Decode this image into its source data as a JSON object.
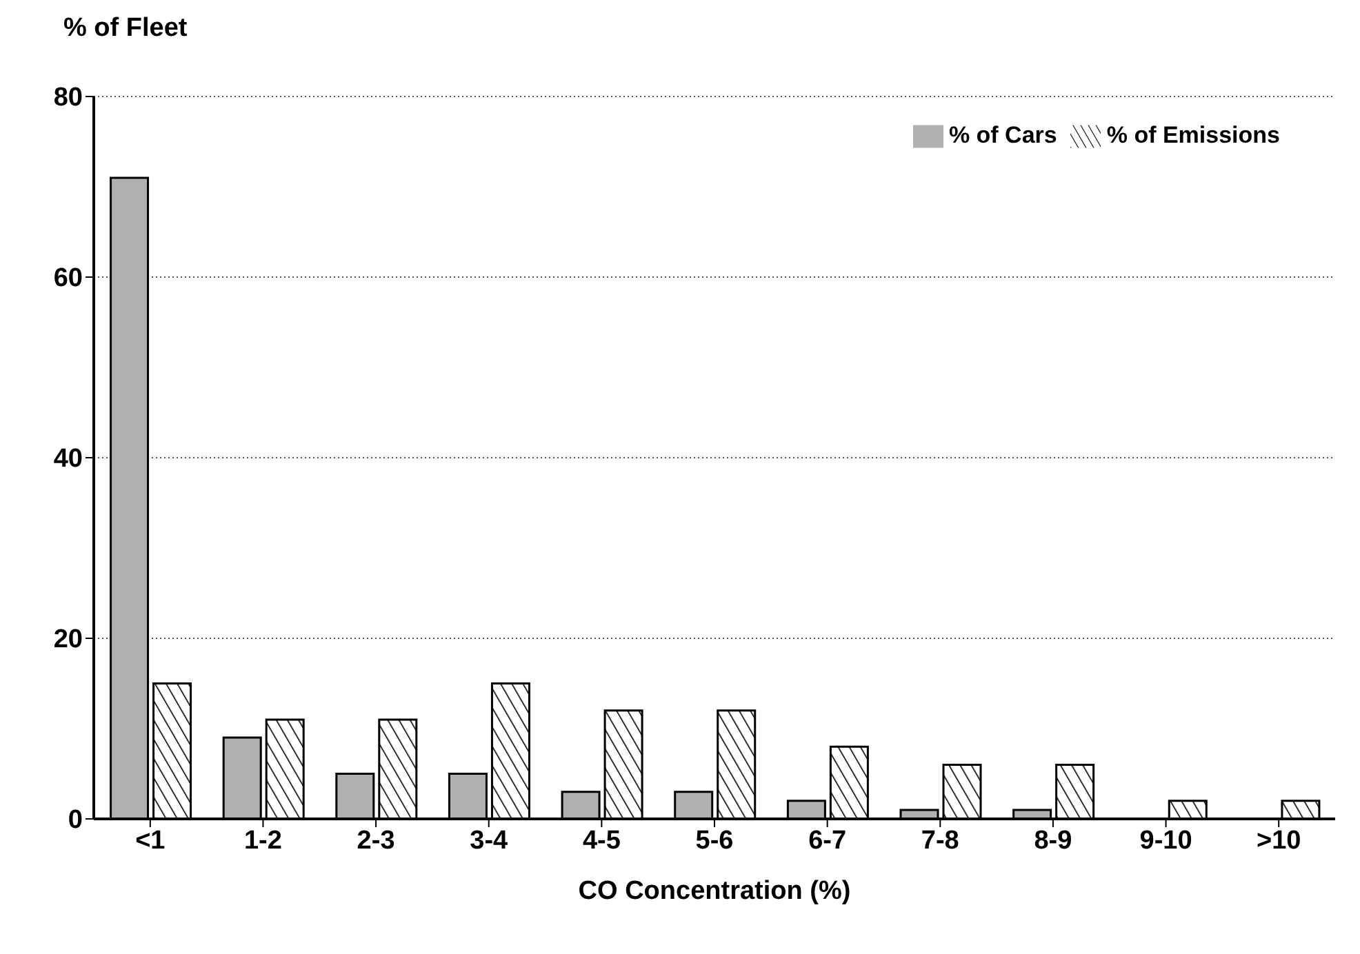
{
  "chart_data": {
    "type": "bar",
    "ylabel": "% of Fleet",
    "xlabel": "CO Concentration (%)",
    "categories": [
      "<1",
      "1-2",
      "2-3",
      "3-4",
      "4-5",
      "5-6",
      "6-7",
      "7-8",
      "8-9",
      "9-10",
      ">10"
    ],
    "series": [
      {
        "name": "% of Cars",
        "color": "#b0b0b0",
        "values": [
          71,
          9,
          5,
          5,
          3,
          3,
          2,
          1,
          1,
          0,
          0
        ]
      },
      {
        "name": "% of Emissions",
        "color": "#000000",
        "values": [
          15,
          11,
          11,
          15,
          12,
          12,
          8,
          6,
          6,
          2,
          2
        ]
      }
    ],
    "ylim": [
      0,
      80
    ],
    "yticks": [
      0,
      20,
      40,
      60,
      80
    ],
    "grid": "y",
    "legend": "top right"
  }
}
